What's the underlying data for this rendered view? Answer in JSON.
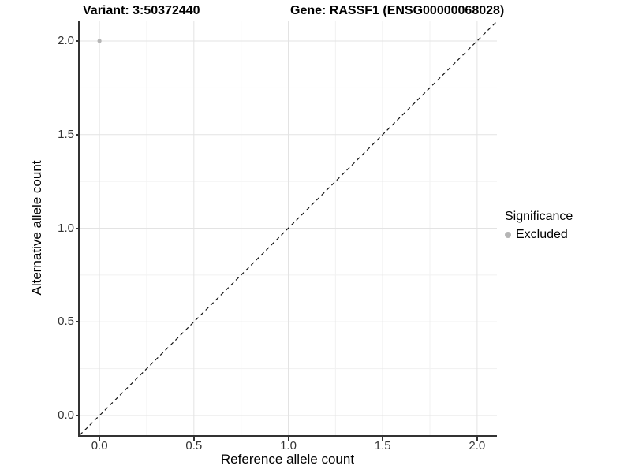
{
  "header": {
    "variant_title": "Variant: 3:50372440",
    "gene_title": "Gene: RASSF1 (ENSG00000068028)"
  },
  "legend": {
    "title": "Significance",
    "items": [
      {
        "label": "Excluded",
        "color": "#b5b5b5",
        "marker": "circle"
      }
    ],
    "position": "right"
  },
  "chart_data": {
    "type": "scatter",
    "title": "Variant: 3:50372440   Gene: RASSF1 (ENSG00000068028)",
    "xlabel": "Reference allele count",
    "ylabel": "Alternative allele count",
    "xlim": [
      -0.105,
      2.105
    ],
    "ylim": [
      -0.105,
      2.105
    ],
    "x_ticks": [
      0,
      0.5,
      1,
      1.5,
      2
    ],
    "x_tick_labels": [
      "0.0",
      "0.5",
      "1.0",
      "1.5",
      "2.0"
    ],
    "y_ticks": [
      0,
      0.5,
      1,
      1.5,
      2
    ],
    "y_tick_labels": [
      "0.0",
      "0.5",
      "1.0",
      "1.5",
      "2.0"
    ],
    "x_minor_ticks": [
      0.25,
      0.75,
      1.25,
      1.75
    ],
    "y_minor_ticks": [
      0.25,
      0.75,
      1.25,
      1.75
    ],
    "grid": true,
    "legend_position": "right",
    "series": [
      {
        "name": "Excluded",
        "color": "#b5b5b5",
        "points": [
          {
            "x": 0.0,
            "y": 2.0
          }
        ]
      }
    ],
    "reference_line": {
      "type": "identity",
      "style": "dashed",
      "from": -0.105,
      "to": 2.105,
      "color": "#111111"
    }
  },
  "colors": {
    "background": "#ffffff",
    "axis_line": "#333333",
    "tick_text": "#333333",
    "grid_major": "#e3e3e3",
    "grid_minor": "#f1f1f1",
    "point": "#b5b5b5"
  }
}
